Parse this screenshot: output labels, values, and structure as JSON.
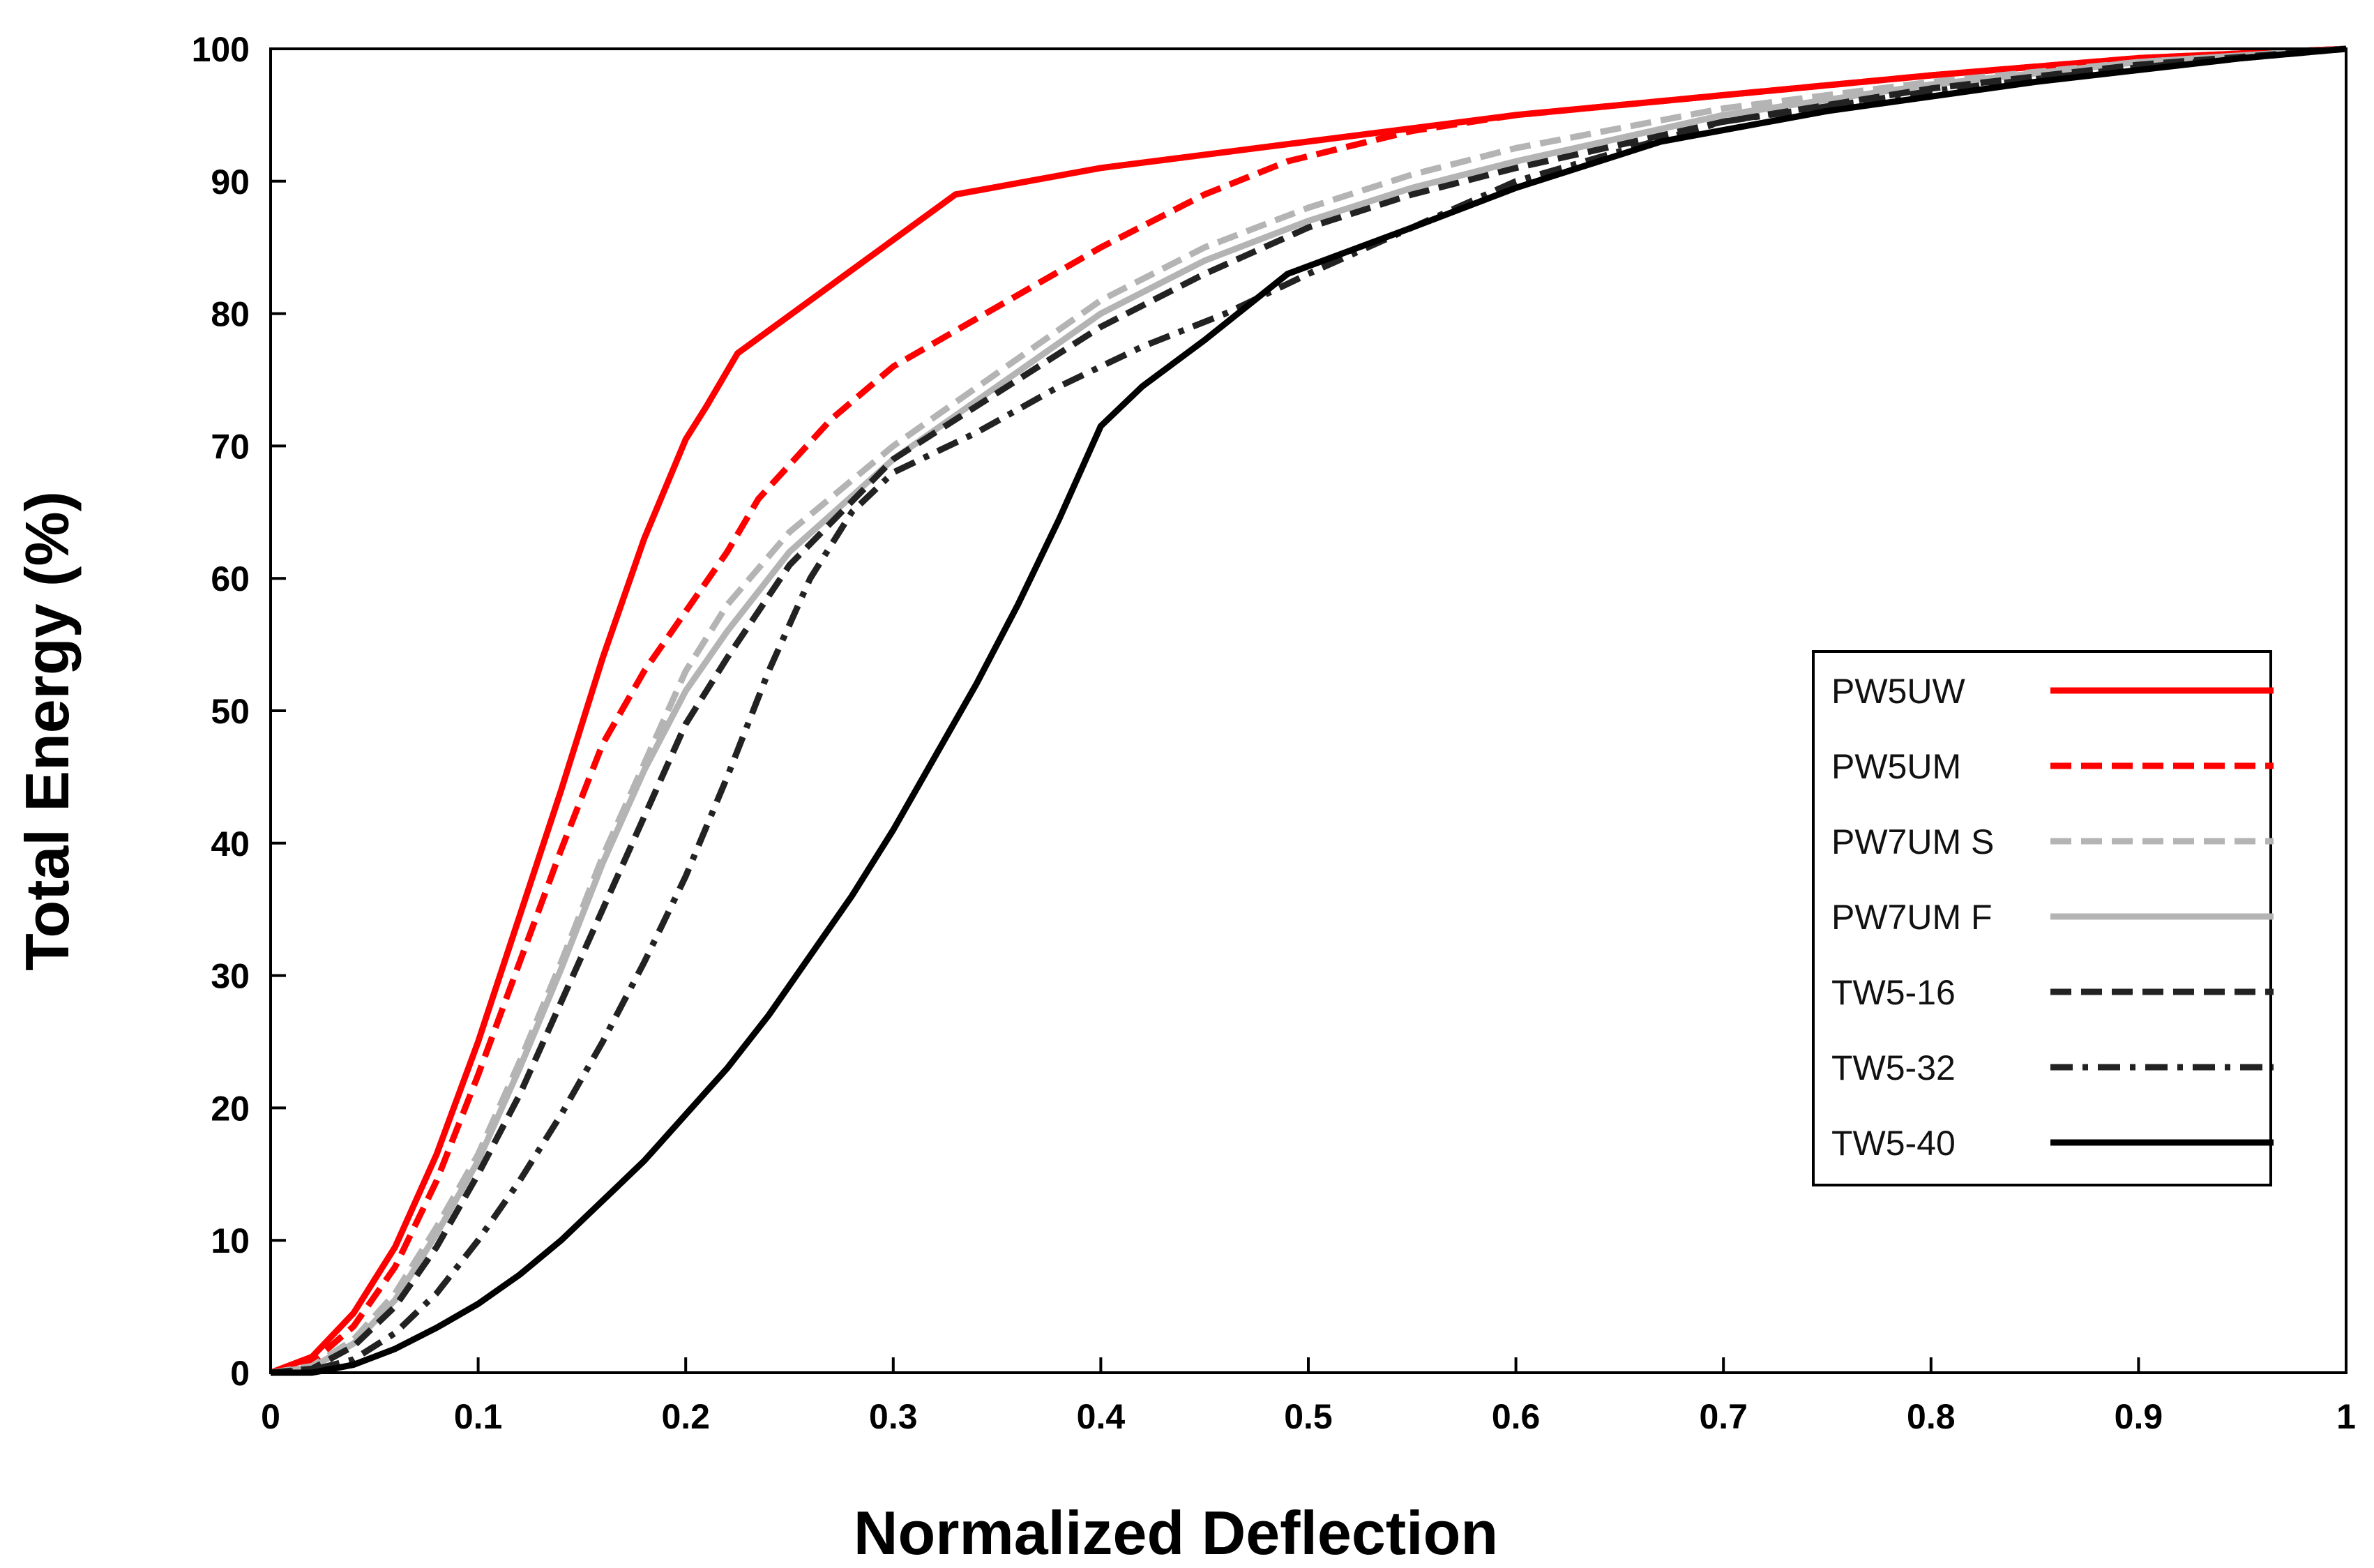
{
  "chart_data": {
    "type": "line",
    "title": "",
    "xlabel": "Normalized Deflection",
    "ylabel": "Total Energy (%)",
    "xlim": [
      0,
      1
    ],
    "ylim": [
      0,
      100
    ],
    "xticks": [
      0,
      0.1,
      0.2,
      0.3,
      0.4,
      0.5,
      0.6,
      0.7,
      0.8,
      0.9,
      1
    ],
    "xtick_labels": [
      "0",
      "0.1",
      "0.2",
      "0.3",
      "0.4",
      "0.5",
      "0.6",
      "0.7",
      "0.8",
      "0.9",
      "1"
    ],
    "yticks": [
      0,
      10,
      20,
      30,
      40,
      50,
      60,
      70,
      80,
      90,
      100
    ],
    "ytick_labels": [
      "0",
      "10",
      "20",
      "30",
      "40",
      "50",
      "60",
      "70",
      "80",
      "90",
      "100"
    ],
    "grid": false,
    "legend_position": "right",
    "series": [
      {
        "name": "PW5UW",
        "color": "#ff0000",
        "dash": "solid",
        "x": [
          0,
          0.02,
          0.04,
          0.06,
          0.08,
          0.1,
          0.12,
          0.14,
          0.16,
          0.18,
          0.2,
          0.21,
          0.225,
          0.33,
          0.4,
          0.5,
          0.6,
          0.7,
          0.8,
          0.9,
          1.0
        ],
        "y": [
          0,
          1.2,
          4.5,
          9.5,
          16.5,
          25,
          34.5,
          44,
          54,
          63,
          70.5,
          73,
          77,
          89,
          91,
          93,
          95,
          96.5,
          98,
          99.3,
          100
        ]
      },
      {
        "name": "PW5UM",
        "color": "#ff0000",
        "dash": "dashed",
        "x": [
          0,
          0.02,
          0.04,
          0.06,
          0.08,
          0.1,
          0.12,
          0.14,
          0.16,
          0.18,
          0.2,
          0.22,
          0.235,
          0.27,
          0.3,
          0.35,
          0.4,
          0.45,
          0.49,
          0.55,
          0.6,
          0.7,
          0.8,
          0.9,
          1.0
        ],
        "y": [
          0,
          0.8,
          3.5,
          8,
          14.5,
          22.5,
          31,
          39.5,
          47.5,
          53,
          57.5,
          62,
          66,
          72,
          76,
          80.5,
          85,
          89,
          91.5,
          93.8,
          95,
          96.5,
          98,
          99.3,
          100
        ]
      },
      {
        "name": "PW7UM S",
        "color": "#b4b4b4",
        "dash": "dashed",
        "x": [
          0,
          0.02,
          0.04,
          0.06,
          0.08,
          0.1,
          0.12,
          0.14,
          0.16,
          0.18,
          0.2,
          0.22,
          0.25,
          0.3,
          0.35,
          0.4,
          0.45,
          0.5,
          0.55,
          0.6,
          0.7,
          0.8,
          0.9,
          1.0
        ],
        "y": [
          0,
          0.5,
          2.5,
          6,
          11,
          16.5,
          23.5,
          31,
          39,
          46,
          53,
          58,
          63.5,
          70,
          75.5,
          81,
          85,
          88,
          90.5,
          92.5,
          95.5,
          97.5,
          99,
          100
        ]
      },
      {
        "name": "PW7UM F",
        "color": "#b4b4b4",
        "dash": "solid",
        "x": [
          0,
          0.02,
          0.04,
          0.06,
          0.08,
          0.1,
          0.12,
          0.14,
          0.16,
          0.18,
          0.2,
          0.22,
          0.25,
          0.3,
          0.35,
          0.4,
          0.45,
          0.5,
          0.55,
          0.6,
          0.7,
          0.8,
          0.9,
          1.0
        ],
        "y": [
          0,
          0.4,
          2.2,
          5.5,
          10.5,
          16,
          23,
          30.5,
          38.5,
          45.5,
          51.5,
          56,
          62,
          69,
          74.5,
          80,
          84,
          87,
          89.5,
          91.5,
          95,
          97.3,
          99,
          100
        ]
      },
      {
        "name": "TW5-16",
        "color": "#222222",
        "dash": "dashed",
        "x": [
          0,
          0.02,
          0.04,
          0.06,
          0.08,
          0.1,
          0.12,
          0.14,
          0.16,
          0.18,
          0.2,
          0.22,
          0.25,
          0.3,
          0.35,
          0.4,
          0.45,
          0.5,
          0.55,
          0.6,
          0.7,
          0.8,
          0.9,
          1.0
        ],
        "y": [
          0,
          0.3,
          2,
          5,
          9.5,
          15,
          21,
          28,
          35,
          42,
          49,
          54,
          61,
          69,
          74,
          79,
          83,
          86.5,
          89,
          91,
          94.5,
          97,
          98.8,
          100
        ]
      },
      {
        "name": "TW5-32",
        "color": "#222222",
        "dash": "dashdot",
        "x": [
          0,
          0.02,
          0.04,
          0.06,
          0.08,
          0.1,
          0.12,
          0.14,
          0.16,
          0.18,
          0.2,
          0.22,
          0.24,
          0.26,
          0.28,
          0.3,
          0.34,
          0.38,
          0.42,
          0.46,
          0.5,
          0.55,
          0.6,
          0.7,
          0.8,
          0.9,
          1.0
        ],
        "y": [
          0,
          0.2,
          1,
          3,
          6,
          10,
          14.5,
          19.5,
          25,
          31,
          37.5,
          45,
          53,
          60,
          65,
          68,
          71,
          74.5,
          77.5,
          80,
          83,
          86.5,
          90,
          94.5,
          96.8,
          98.6,
          100
        ]
      },
      {
        "name": "TW5-40",
        "color": "#000000",
        "dash": "solid",
        "x": [
          0,
          0.02,
          0.04,
          0.06,
          0.08,
          0.1,
          0.12,
          0.14,
          0.16,
          0.18,
          0.2,
          0.22,
          0.24,
          0.26,
          0.28,
          0.3,
          0.32,
          0.34,
          0.36,
          0.38,
          0.4,
          0.42,
          0.45,
          0.49,
          0.55,
          0.6,
          0.67,
          0.75,
          0.85,
          0.95,
          1.0
        ],
        "y": [
          0,
          0,
          0.6,
          1.8,
          3.4,
          5.2,
          7.4,
          10,
          13,
          16,
          19.5,
          23,
          27,
          31.5,
          36,
          41,
          46.5,
          52,
          58,
          64.5,
          71.5,
          74.5,
          78,
          83,
          86.5,
          89.5,
          93,
          95.3,
          97.5,
          99.3,
          100
        ]
      }
    ]
  }
}
